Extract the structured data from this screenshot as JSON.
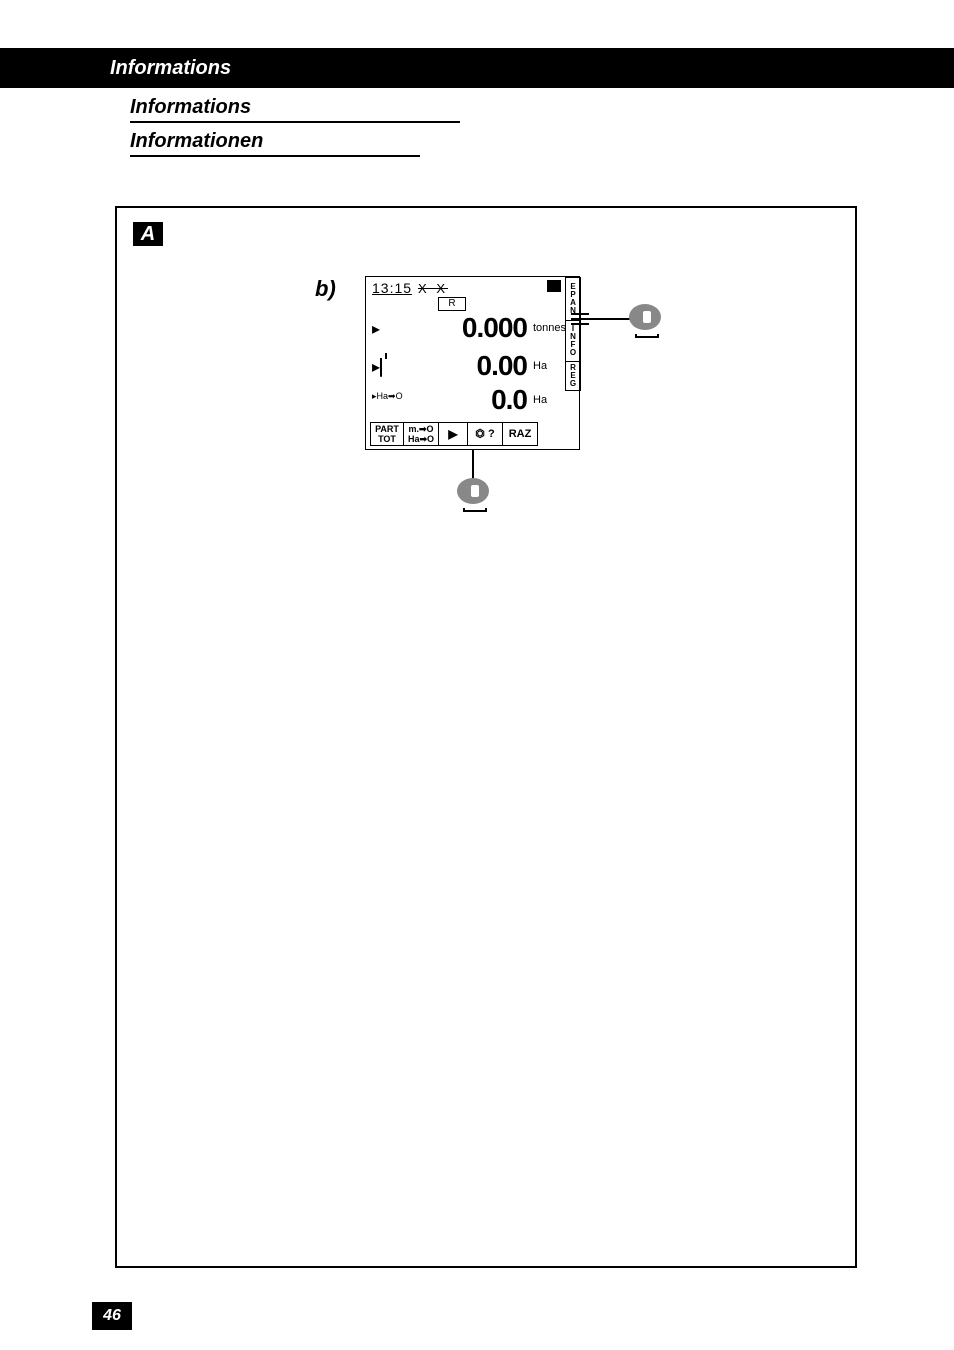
{
  "header": {
    "title": "Informations"
  },
  "subheaders": {
    "s1": "Informations",
    "s2": "Informationen"
  },
  "labels": {
    "a": "A",
    "b": "b)"
  },
  "display": {
    "time": "13:15",
    "xx": "X X",
    "r_label": "R",
    "row1": {
      "value": "0.000",
      "unit": "tonnes"
    },
    "row2": {
      "value": "0.00",
      "unit": "Ha"
    },
    "row3": {
      "icon_text": "▸Ha➡O",
      "value": "0.0",
      "unit": "Ha"
    },
    "side_tabs": {
      "tab1": [
        "E",
        "P",
        "A",
        "N"
      ],
      "tab2": [
        "I",
        "N",
        "F",
        "O"
      ],
      "tab3": [
        "R",
        "E",
        "G"
      ]
    },
    "bottom_buttons": {
      "part": {
        "l1": "PART",
        "l2": "TOT"
      },
      "mo": {
        "l1": "m.➡O",
        "l2": "Ha➡O"
      },
      "play": "▶",
      "q": "⏣ ?",
      "raz": "RAZ"
    }
  },
  "page_number": "46"
}
